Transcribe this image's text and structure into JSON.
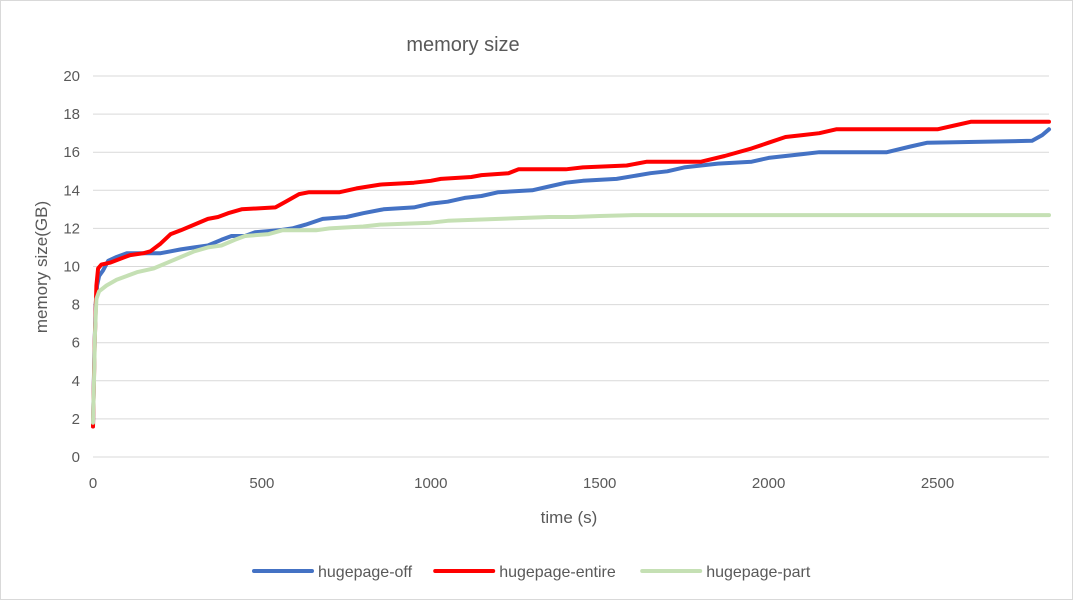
{
  "chart_data": {
    "type": "line",
    "title": "memory size",
    "xlabel": "time (s)",
    "ylabel": "memory size(GB)",
    "xlim": [
      0,
      2830
    ],
    "ylim": [
      0,
      20
    ],
    "xticks": [
      0,
      500,
      1000,
      1500,
      2000,
      2500
    ],
    "yticks": [
      0,
      2,
      4,
      6,
      8,
      10,
      12,
      14,
      16,
      18,
      20
    ],
    "grid": true,
    "legend_position": "bottom",
    "series": [
      {
        "name": "hugepage-off",
        "color": "#4472c4",
        "points": [
          [
            0,
            1.6
          ],
          [
            4,
            5.5
          ],
          [
            8,
            8.0
          ],
          [
            12,
            9.0
          ],
          [
            18,
            9.5
          ],
          [
            30,
            9.8
          ],
          [
            45,
            10.3
          ],
          [
            70,
            10.5
          ],
          [
            100,
            10.7
          ],
          [
            150,
            10.7
          ],
          [
            200,
            10.7
          ],
          [
            230,
            10.8
          ],
          [
            260,
            10.9
          ],
          [
            300,
            11.0
          ],
          [
            340,
            11.1
          ],
          [
            380,
            11.4
          ],
          [
            410,
            11.6
          ],
          [
            450,
            11.6
          ],
          [
            480,
            11.8
          ],
          [
            550,
            11.9
          ],
          [
            590,
            12.0
          ],
          [
            630,
            12.2
          ],
          [
            680,
            12.5
          ],
          [
            750,
            12.6
          ],
          [
            800,
            12.8
          ],
          [
            860,
            13.0
          ],
          [
            950,
            13.1
          ],
          [
            1000,
            13.3
          ],
          [
            1050,
            13.4
          ],
          [
            1100,
            13.6
          ],
          [
            1150,
            13.7
          ],
          [
            1200,
            13.9
          ],
          [
            1300,
            14.0
          ],
          [
            1350,
            14.2
          ],
          [
            1400,
            14.4
          ],
          [
            1450,
            14.5
          ],
          [
            1550,
            14.6
          ],
          [
            1650,
            14.9
          ],
          [
            1700,
            15.0
          ],
          [
            1750,
            15.2
          ],
          [
            1850,
            15.4
          ],
          [
            1950,
            15.5
          ],
          [
            2000,
            15.7
          ],
          [
            2050,
            15.8
          ],
          [
            2100,
            15.9
          ],
          [
            2150,
            16.0
          ],
          [
            2350,
            16.0
          ],
          [
            2420,
            16.3
          ],
          [
            2470,
            16.5
          ],
          [
            2780,
            16.6
          ],
          [
            2810,
            16.9
          ],
          [
            2830,
            17.2
          ]
        ]
      },
      {
        "name": "hugepage-entire",
        "color": "#ff0000",
        "points": [
          [
            0,
            1.6
          ],
          [
            5,
            6.0
          ],
          [
            10,
            9.0
          ],
          [
            15,
            9.9
          ],
          [
            25,
            10.1
          ],
          [
            50,
            10.2
          ],
          [
            80,
            10.4
          ],
          [
            110,
            10.6
          ],
          [
            150,
            10.7
          ],
          [
            170,
            10.8
          ],
          [
            200,
            11.2
          ],
          [
            230,
            11.7
          ],
          [
            260,
            11.9
          ],
          [
            300,
            12.2
          ],
          [
            340,
            12.5
          ],
          [
            370,
            12.6
          ],
          [
            400,
            12.8
          ],
          [
            440,
            13.0
          ],
          [
            540,
            13.1
          ],
          [
            570,
            13.4
          ],
          [
            610,
            13.8
          ],
          [
            640,
            13.9
          ],
          [
            730,
            13.9
          ],
          [
            780,
            14.1
          ],
          [
            850,
            14.3
          ],
          [
            950,
            14.4
          ],
          [
            1000,
            14.5
          ],
          [
            1030,
            14.6
          ],
          [
            1120,
            14.7
          ],
          [
            1150,
            14.8
          ],
          [
            1230,
            14.9
          ],
          [
            1260,
            15.1
          ],
          [
            1400,
            15.1
          ],
          [
            1450,
            15.2
          ],
          [
            1580,
            15.3
          ],
          [
            1640,
            15.5
          ],
          [
            1800,
            15.5
          ],
          [
            1870,
            15.8
          ],
          [
            1950,
            16.2
          ],
          [
            2000,
            16.5
          ],
          [
            2050,
            16.8
          ],
          [
            2100,
            16.9
          ],
          [
            2150,
            17.0
          ],
          [
            2200,
            17.2
          ],
          [
            2500,
            17.2
          ],
          [
            2550,
            17.4
          ],
          [
            2600,
            17.6
          ],
          [
            2830,
            17.6
          ]
        ]
      },
      {
        "name": "hugepage-part",
        "color": "#c5e0b4",
        "points": [
          [
            0,
            1.8
          ],
          [
            3,
            4.0
          ],
          [
            6,
            6.5
          ],
          [
            10,
            8.3
          ],
          [
            18,
            8.7
          ],
          [
            40,
            9.0
          ],
          [
            70,
            9.3
          ],
          [
            100,
            9.5
          ],
          [
            130,
            9.7
          ],
          [
            180,
            9.9
          ],
          [
            220,
            10.2
          ],
          [
            260,
            10.5
          ],
          [
            300,
            10.8
          ],
          [
            340,
            11.0
          ],
          [
            380,
            11.1
          ],
          [
            420,
            11.4
          ],
          [
            450,
            11.6
          ],
          [
            520,
            11.7
          ],
          [
            560,
            11.9
          ],
          [
            660,
            11.9
          ],
          [
            700,
            12.0
          ],
          [
            800,
            12.1
          ],
          [
            850,
            12.2
          ],
          [
            1000,
            12.3
          ],
          [
            1050,
            12.4
          ],
          [
            1200,
            12.5
          ],
          [
            1350,
            12.6
          ],
          [
            1420,
            12.6
          ],
          [
            1500,
            12.65
          ],
          [
            1600,
            12.7
          ],
          [
            2000,
            12.7
          ],
          [
            2830,
            12.7
          ]
        ]
      }
    ]
  }
}
